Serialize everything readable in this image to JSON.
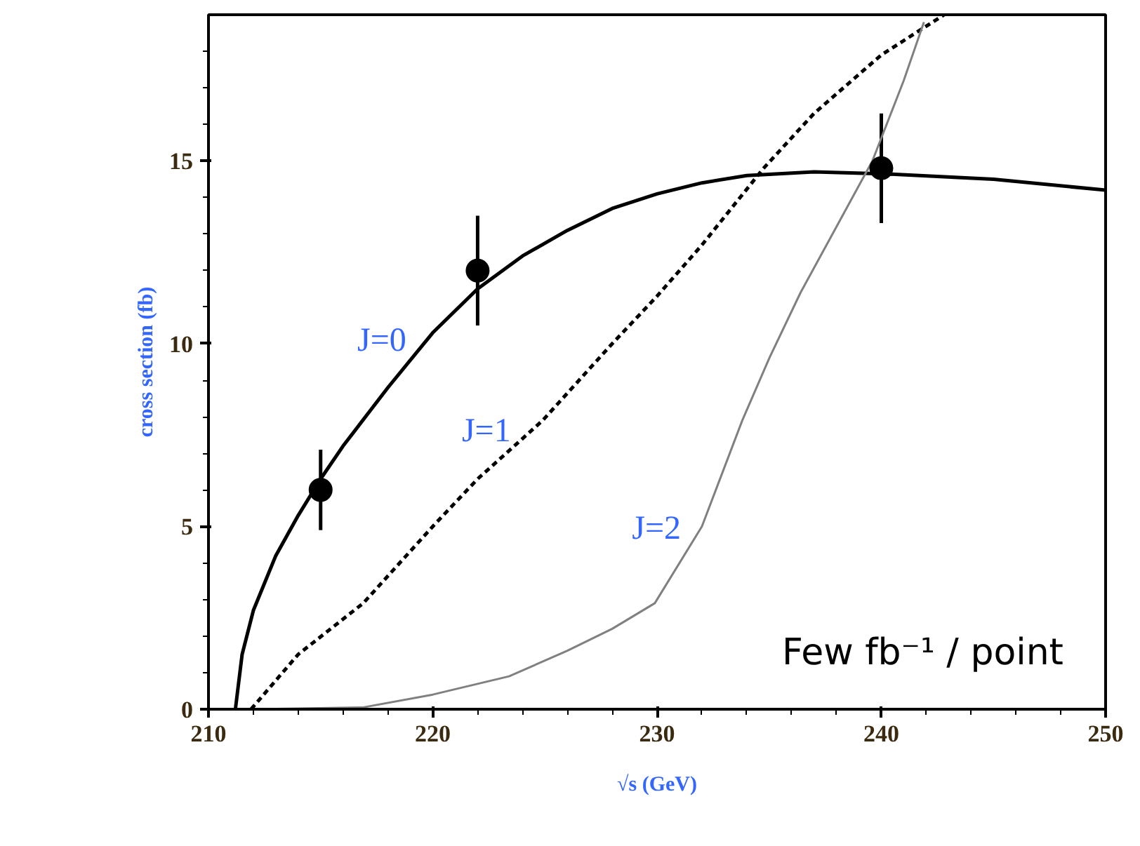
{
  "chart_data": {
    "type": "line",
    "xlabel": "√s (GeV)",
    "ylabel": "cross section (fb)",
    "xlim": [
      210,
      250
    ],
    "ylim": [
      0,
      19
    ],
    "xticks": [
      210,
      {
        "value": 212,
        "label": null
      },
      {
        "value": 214,
        "label": null
      },
      {
        "value": 216,
        "label": null
      },
      {
        "value": 218,
        "label": null
      },
      220,
      {
        "value": 222,
        "label": null
      },
      {
        "value": 224,
        "label": null
      },
      {
        "value": 226,
        "label": null
      },
      {
        "value": 228,
        "label": null
      },
      230,
      {
        "value": 232,
        "label": null
      },
      {
        "value": 234,
        "label": null
      },
      {
        "value": 236,
        "label": null
      },
      {
        "value": 238,
        "label": null
      },
      240,
      {
        "value": 242,
        "label": null
      },
      {
        "value": 244,
        "label": null
      },
      {
        "value": 246,
        "label": null
      },
      {
        "value": 248,
        "label": null
      },
      250
    ],
    "yticks": [
      0,
      {
        "value": 1,
        "label": null
      },
      {
        "value": 2,
        "label": null
      },
      {
        "value": 3,
        "label": null
      },
      {
        "value": 4,
        "label": null
      },
      5,
      {
        "value": 6,
        "label": null
      },
      {
        "value": 7,
        "label": null
      },
      {
        "value": 8,
        "label": null
      },
      {
        "value": 9,
        "label": null
      },
      10,
      {
        "value": 11,
        "label": null
      },
      {
        "value": 12,
        "label": null
      },
      {
        "value": 13,
        "label": null
      },
      {
        "value": 14,
        "label": null
      },
      15,
      {
        "value": 16,
        "label": null
      },
      {
        "value": 17,
        "label": null
      },
      {
        "value": 18,
        "label": null
      }
    ],
    "grid": false,
    "legend": false,
    "series": [
      {
        "name": "J=0",
        "color": "#000000",
        "line_style": "solid",
        "x": [
          211.2,
          211.5,
          212,
          213,
          214,
          215,
          216,
          218,
          220,
          222,
          224,
          226,
          228,
          230,
          232,
          234,
          237,
          240,
          245,
          250
        ],
        "values": [
          0,
          1.5,
          2.7,
          4.2,
          5.3,
          6.3,
          7.2,
          8.8,
          10.3,
          11.5,
          12.4,
          13.1,
          13.7,
          14.1,
          14.4,
          14.6,
          14.7,
          14.65,
          14.5,
          14.2
        ]
      },
      {
        "name": "J=1",
        "color": "#000000",
        "line_style": "dashed",
        "x": [
          211.9,
          214,
          216.9,
          220,
          222,
          224.9,
          228,
          230,
          232,
          234.75,
          237,
          240,
          242.8
        ],
        "values": [
          0,
          1.5,
          2.9,
          5.0,
          6.3,
          7.9,
          10.0,
          11.3,
          12.7,
          14.8,
          16.3,
          17.9,
          19
        ]
      },
      {
        "name": "J=2",
        "color": "#808080",
        "line_style": "solid",
        "x": [
          212,
          214,
          216.9,
          220,
          223.4,
          226,
          228,
          229.9,
          232,
          233.8,
          235,
          236.4,
          238,
          239.6,
          241,
          241.9
        ],
        "values": [
          0,
          0.02,
          0.05,
          0.4,
          0.9,
          1.6,
          2.2,
          2.9,
          5.0,
          7.9,
          9.6,
          11.4,
          13.2,
          15,
          17.2,
          18.8
        ]
      },
      {
        "type": "scatter",
        "color": "#000000",
        "marker": "circle",
        "x": [
          215,
          222,
          240
        ],
        "values": [
          6.0,
          12.0,
          14.8
        ],
        "errors": [
          1.1,
          1.5,
          1.5
        ]
      }
    ],
    "annotations": [
      "Few fb⁻¹ / point"
    ]
  }
}
